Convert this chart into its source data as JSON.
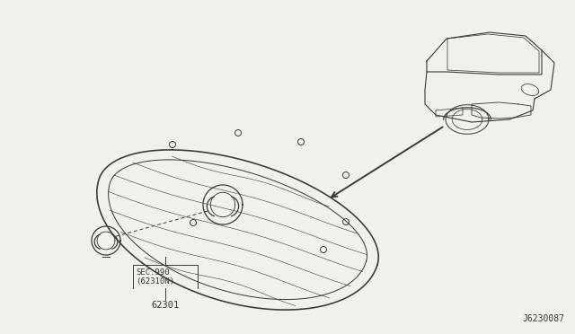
{
  "background_color": "#f2f0eb",
  "line_color": "#3a3a3a",
  "diagram_id": "J6230087",
  "label_grille": "62301",
  "label_sec_line1": "SEC.990",
  "label_sec_line2": "(62310N)"
}
